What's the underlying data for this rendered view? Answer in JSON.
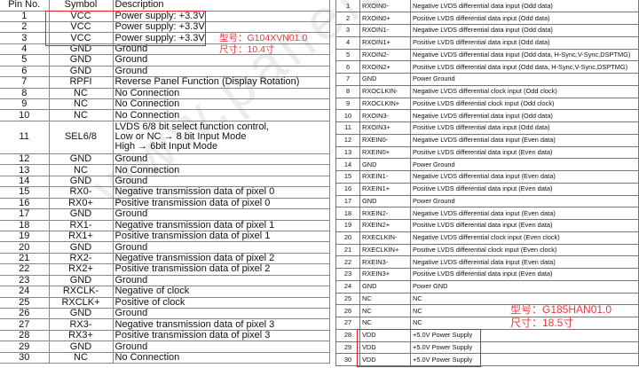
{
  "left_table": {
    "headers": [
      "Pin No.",
      "Symbol",
      "Description"
    ],
    "rows": [
      [
        "1",
        "VCC",
        "Power supply: +3.3V"
      ],
      [
        "2",
        "VCC",
        "Power supply: +3.3V"
      ],
      [
        "3",
        "VCC",
        "Power supply: +3.3V"
      ],
      [
        "4",
        "GND",
        "Ground"
      ],
      [
        "5",
        "GND",
        "Ground"
      ],
      [
        "6",
        "GND",
        "Ground"
      ],
      [
        "7",
        "RPFI",
        "Reverse Panel Function (Display Rotation)"
      ],
      [
        "8",
        "NC",
        "No Connection"
      ],
      [
        "9",
        "NC",
        "No Connection"
      ],
      [
        "10",
        "NC",
        "No Connection"
      ],
      [
        "11",
        "SEL6/8",
        "LVDS 6/8 bit select function control,\nLow or NC → 8 bit Input Mode\nHigh → 6bit Input Mode"
      ],
      [
        "12",
        "GND",
        "Ground"
      ],
      [
        "13",
        "NC",
        "No Connection"
      ],
      [
        "14",
        "GND",
        "Ground"
      ],
      [
        "15",
        "RX0-",
        "Negative transmission data of pixel 0"
      ],
      [
        "16",
        "RX0+",
        "Positive transmission data of pixel 0"
      ],
      [
        "17",
        "GND",
        "Ground"
      ],
      [
        "18",
        "RX1-",
        "Negative transmission data of pixel 1"
      ],
      [
        "19",
        "RX1+",
        "Positive transmission data of pixel 1"
      ],
      [
        "20",
        "GND",
        "Ground"
      ],
      [
        "21",
        "RX2-",
        "Negative transmission data of pixel 2"
      ],
      [
        "22",
        "RX2+",
        "Positive transmission data of pixel 2"
      ],
      [
        "23",
        "GND",
        "Ground"
      ],
      [
        "24",
        "RXCLK-",
        "Negative of clock"
      ],
      [
        "25",
        "RXCLK+",
        "Positive of clock"
      ],
      [
        "26",
        "GND",
        "Ground"
      ],
      [
        "27",
        "RX3-",
        "Negative transmission data of pixel 3"
      ],
      [
        "28",
        "RX3+",
        "Positive transmission data of pixel 3"
      ],
      [
        "29",
        "GND",
        "Ground"
      ],
      [
        "30",
        "NC",
        "No Connection"
      ]
    ],
    "note_model": "型号：G104XVN01.0",
    "note_size": "尺寸：10.4寸"
  },
  "right_table": {
    "rows": [
      [
        "1",
        "RXOIN0-",
        "Negative LVDS differential data input (Odd data)"
      ],
      [
        "2",
        "RXOIN0+",
        "Positive LVDS differential data input (Odd data)"
      ],
      [
        "3",
        "RXOIN1-",
        "Negative LVDS differential data input (Odd data)"
      ],
      [
        "4",
        "RXOIN1+",
        "Positive LVDS differential data input (Odd data)"
      ],
      [
        "5",
        "RXOIN2-",
        "Negative LVDS differential data input (Odd data, H-Sync,V-Sync,DSPTMG)"
      ],
      [
        "6",
        "RXOIN2+",
        "Positive LVDS differential data input (Odd data, H-Sync,V-Sync,DSPTMG)"
      ],
      [
        "7",
        "GND",
        "Power Ground"
      ],
      [
        "8",
        "RXOCLKIN-",
        "Negative LVDS differential clock input (Odd clock)"
      ],
      [
        "9",
        "RXOCLKIN+",
        "Positive LVDS differential clock input (Odd clock)"
      ],
      [
        "10",
        "RXOIN3-",
        "Negative LVDS differential data input (Odd data)"
      ],
      [
        "11",
        "RXOIN3+",
        "Positive LVDS differential data input (Odd data)"
      ],
      [
        "12",
        "RXEIN0-",
        "Negative LVDS differential data input (Even data)"
      ],
      [
        "13",
        "RXEIN0+",
        "Positive LVDS differential data input (Even data)"
      ],
      [
        "14",
        "GND",
        "Power Ground"
      ],
      [
        "15",
        "RXEIN1-",
        "Negative LVDS differential data input (Even data)"
      ],
      [
        "16",
        "RXEIN1+",
        "Positive LVDS differential data input (Even data)"
      ],
      [
        "17",
        "GND",
        "Power Ground"
      ],
      [
        "18",
        "RXEIN2-",
        "Negative LVDS differential data input (Even data)"
      ],
      [
        "19",
        "RXEIN2+",
        "Positive LVDS differential data input (Even data)"
      ],
      [
        "20",
        "RXECLKIN-",
        "Negative LVDS differential clock input (Even clock)"
      ],
      [
        "21",
        "RXECLKIN+",
        "Positive LVDS differential clock input (Even clock)"
      ],
      [
        "22",
        "RXEIN3-",
        "Negative LVDS differential data input (Even data)"
      ],
      [
        "23",
        "RXEIN3+",
        "Positive LVDS differential data input (Even data)"
      ],
      [
        "24",
        "GND",
        "Power GND"
      ],
      [
        "25",
        "NC",
        "NC"
      ],
      [
        "26",
        "NC",
        "NC"
      ],
      [
        "27",
        "NC",
        "NC"
      ],
      [
        "28",
        "VDD",
        "+5.0V Power Supply"
      ],
      [
        "29",
        "VDD",
        "+5.0V Power Supply"
      ],
      [
        "30",
        "VDD",
        "+5.0V Power Supply"
      ]
    ],
    "note_model": "型号：G185HAN01.0",
    "note_size": "尺寸：18.5寸"
  },
  "watermark": "www.panelook.com",
  "highlight_color": "#e02020"
}
